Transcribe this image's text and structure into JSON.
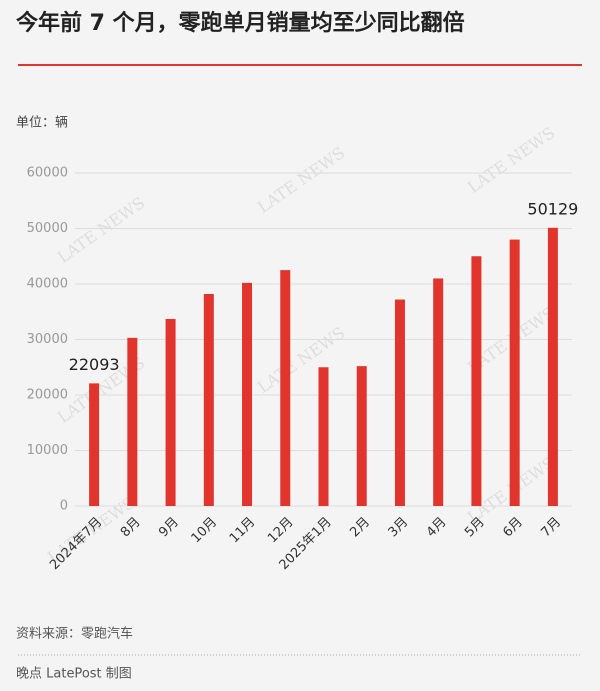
{
  "chart_data": {
    "type": "bar",
    "title": "今年前 7 个月，零跑单月销量均至少同比翻倍",
    "unit_label": "单位：辆",
    "categories": [
      "2024年7月",
      "8月",
      "9月",
      "10月",
      "11月",
      "12月",
      "2025年1月",
      "2月",
      "3月",
      "4月",
      "5月",
      "6月",
      "7月"
    ],
    "values": [
      22093,
      30300,
      33700,
      38200,
      40200,
      42500,
      25000,
      25200,
      37200,
      41000,
      45000,
      48000,
      50129
    ],
    "labeled_points": [
      0,
      12
    ],
    "color": "#e0342c",
    "ylim": [
      0,
      60000
    ],
    "yticks": [
      0,
      10000,
      20000,
      30000,
      40000,
      50000,
      60000
    ],
    "grid": true,
    "source": "资料来源：零跑汽车",
    "credit": "晚点 LatePost 制图",
    "watermark": "LATE NEWS"
  }
}
